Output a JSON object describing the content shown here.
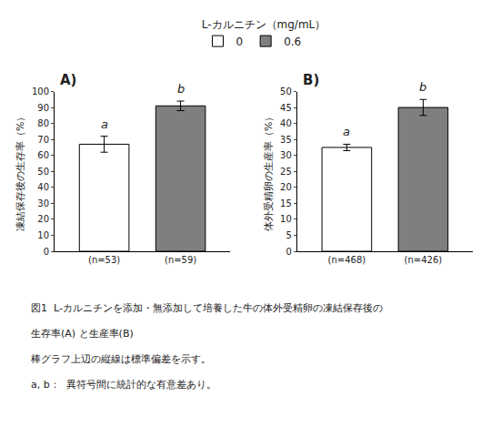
{
  "chart_data": [
    {
      "type": "bar",
      "title": "A)",
      "ylabel": "凍結保存後の生存率（%）",
      "categories": [
        "(n=53)",
        "(n=59)"
      ],
      "series": [
        {
          "name": "0",
          "color": "white",
          "values": [
            67,
            null
          ],
          "errors": [
            5,
            null
          ]
        },
        {
          "name": "0.6",
          "color": "#7f7f7f",
          "values": [
            null,
            91
          ],
          "errors": [
            null,
            3
          ]
        }
      ],
      "annotations": [
        "a",
        "b"
      ],
      "ylim": [
        0,
        100
      ],
      "yticks": [
        0,
        10,
        20,
        30,
        40,
        50,
        60,
        70,
        80,
        90,
        100
      ],
      "grid": false
    },
    {
      "type": "bar",
      "title": "B)",
      "ylabel": "体外受精卵の生産率（%）",
      "categories": [
        "(n=468)",
        "(n=426)"
      ],
      "series": [
        {
          "name": "0",
          "color": "white",
          "values": [
            32.5,
            null
          ],
          "errors": [
            1.0,
            null
          ]
        },
        {
          "name": "0.6",
          "color": "#7f7f7f",
          "values": [
            null,
            45
          ],
          "errors": [
            null,
            2.5
          ]
        }
      ],
      "annotations": [
        "a",
        "b"
      ],
      "ylim": [
        0,
        50
      ],
      "yticks": [
        0,
        5,
        10,
        15,
        20,
        25,
        30,
        35,
        40,
        45,
        50
      ],
      "grid": false
    }
  ],
  "legend": "top",
  "legend_title": "L-カルニチン（mg/mL）",
  "caption": [
    "図1  L-カルニチンを添加・無添加して培養した牛の体外受精卵の凍結保存後の",
    "生存率(A) と生産率(B)",
    "棒グラフ上辺の縦線は標準偏差を示す。",
    "a, b：  異符号間に統計的な有意差あり。"
  ]
}
